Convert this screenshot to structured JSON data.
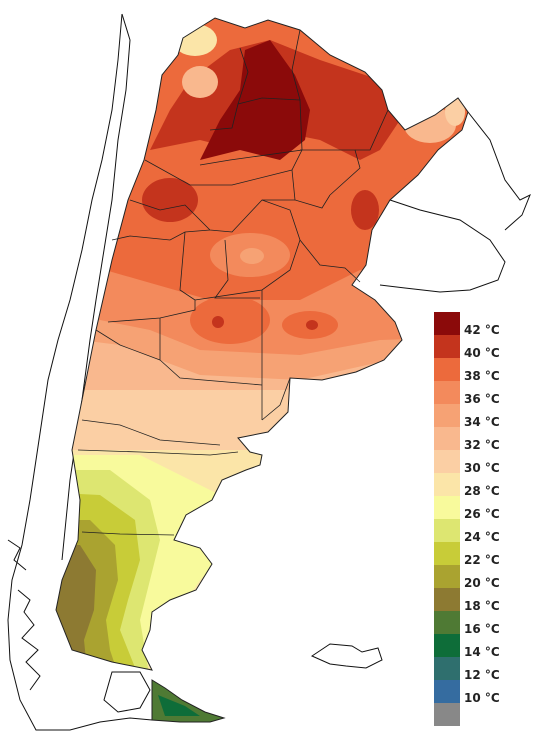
{
  "legend": {
    "items": [
      {
        "label": "42 °C",
        "color": "#8b0a0a"
      },
      {
        "label": "40 °C",
        "color": "#c4341d"
      },
      {
        "label": "38 °C",
        "color": "#ec6a3c"
      },
      {
        "label": "36 °C",
        "color": "#f38a5c"
      },
      {
        "label": "34 °C",
        "color": "#f6a274"
      },
      {
        "label": "32 °C",
        "color": "#f9b88e"
      },
      {
        "label": "30 °C",
        "color": "#fbcfa4"
      },
      {
        "label": "28 °C",
        "color": "#fbe5a8"
      },
      {
        "label": "26 °C",
        "color": "#f8fa9c"
      },
      {
        "label": "24 °C",
        "color": "#dde671"
      },
      {
        "label": "22 °C",
        "color": "#c8cc38"
      },
      {
        "label": "20 °C",
        "color": "#aaa330"
      },
      {
        "label": "18 °C",
        "color": "#8d7a32"
      },
      {
        "label": "16 °C",
        "color": "#4f7a34"
      },
      {
        "label": "14 °C",
        "color": "#0e6d39"
      },
      {
        "label": "12 °C",
        "color": "#2f6f6e"
      },
      {
        "label": "10 °C",
        "color": "#356ca0"
      },
      {
        "label": "",
        "color": "#888888"
      }
    ]
  }
}
